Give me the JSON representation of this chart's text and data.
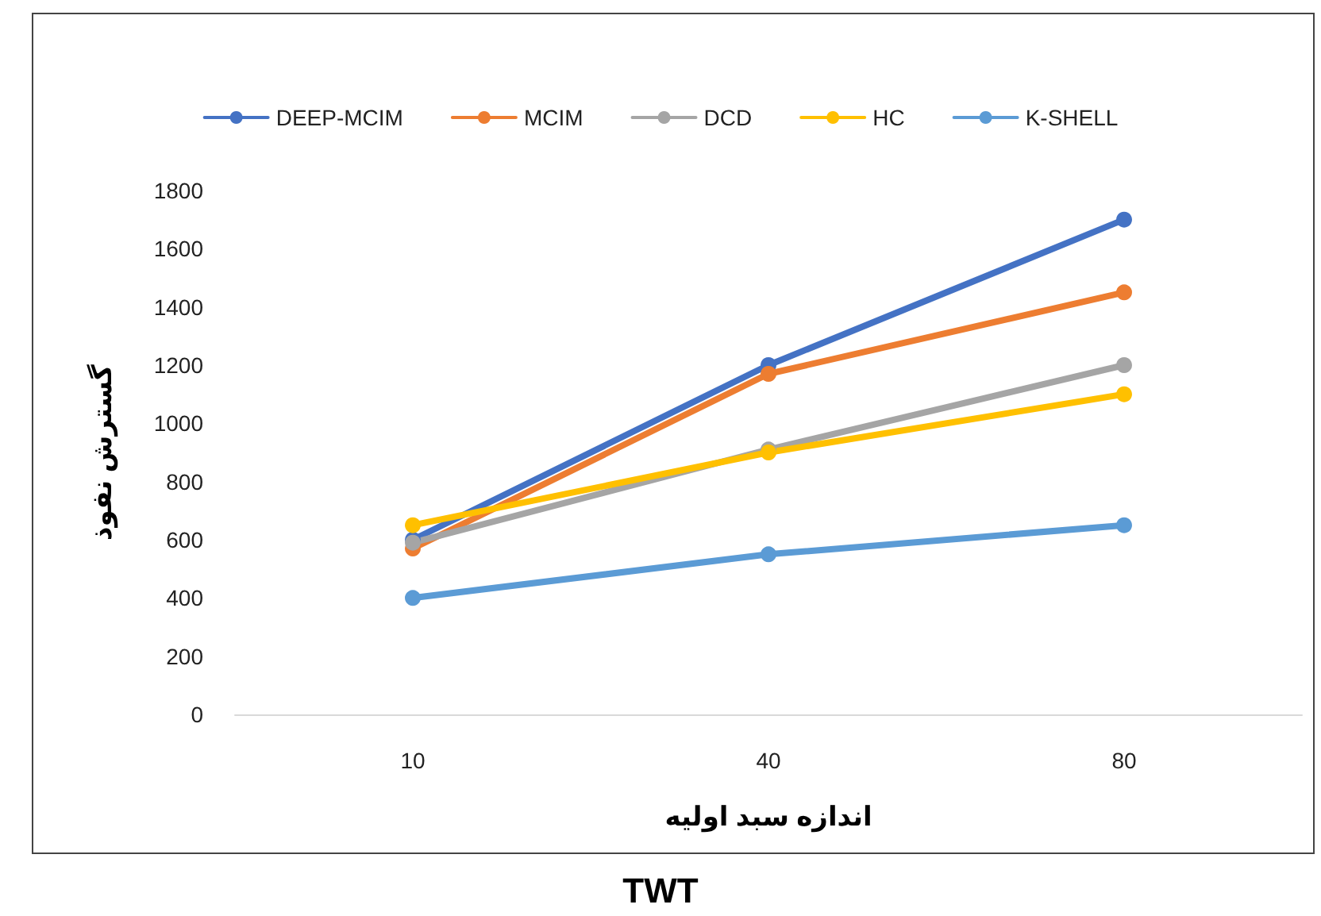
{
  "chart_data": {
    "type": "line",
    "xlabel": "اندازه سبد اولیه",
    "ylabel": "گسترش نفوذ",
    "categories": [
      "10",
      "40",
      "80"
    ],
    "series": [
      {
        "name": "DEEP-MCIM",
        "color": "#4472c4",
        "values": [
          600,
          1200,
          1700
        ]
      },
      {
        "name": "MCIM",
        "color": "#ed7d31",
        "values": [
          570,
          1170,
          1450
        ]
      },
      {
        "name": "DCD",
        "color": "#a5a5a5",
        "values": [
          590,
          910,
          1200
        ]
      },
      {
        "name": "HC",
        "color": "#ffc000",
        "values": [
          650,
          900,
          1100
        ]
      },
      {
        "name": "K-SHELL",
        "color": "#5b9bd5",
        "values": [
          400,
          550,
          650
        ]
      }
    ],
    "ylim": [
      0,
      1800
    ],
    "yticks": [
      0,
      200,
      400,
      600,
      800,
      1000,
      1200,
      1400,
      1600,
      1800
    ],
    "grid": false,
    "legend": "top",
    "marker": "circle",
    "line_style": "solid",
    "annotations": [
      "TWT"
    ]
  }
}
